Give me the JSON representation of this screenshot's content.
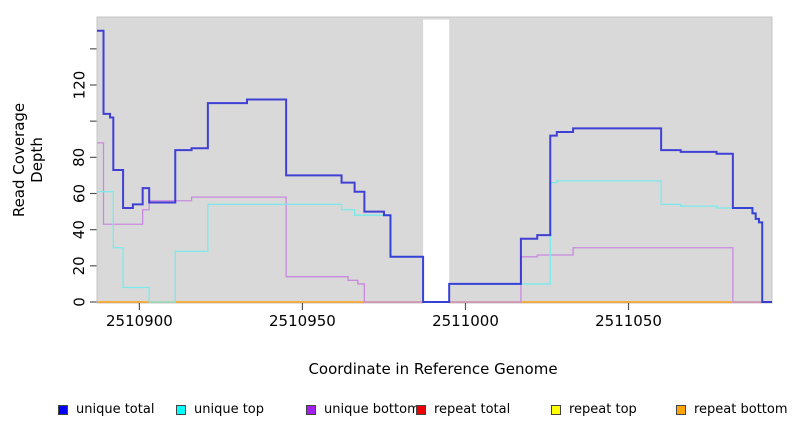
{
  "figure": {
    "ylabel": "Read Coverage Depth",
    "xlabel": "Coordinate in Reference Genome"
  },
  "chart_data": {
    "type": "line",
    "subtype": "step",
    "title": "",
    "xlabel": "Coordinate in Reference Genome",
    "ylabel": "Read Coverage Depth",
    "xlim": [
      2510887,
      2511094
    ],
    "ylim": [
      0,
      157
    ],
    "x_end": 2511094,
    "grid": false,
    "panel_bg": "#d9d9d9",
    "gap_region": [
      2510987,
      2510995
    ],
    "legend_position": "bottom",
    "x_ticks": [
      2510900,
      2510950,
      2511000,
      2511050
    ],
    "y_ticks": [
      {
        "value": 0,
        "label": "0"
      },
      {
        "value": 20,
        "label": "20"
      },
      {
        "value": 40,
        "label": "40"
      },
      {
        "value": 60,
        "label": "60"
      },
      {
        "value": 80,
        "label": "80"
      },
      {
        "value": 100,
        "label": ""
      },
      {
        "value": 120,
        "label": "120"
      },
      {
        "value": 140,
        "label": ""
      }
    ],
    "series": [
      {
        "name": "unique total",
        "legend_color": "#0000ee",
        "line_color": "#2525d2",
        "line_width": 2,
        "line_opacity": 0.85,
        "steps": [
          [
            2510887,
            150
          ],
          [
            2510889,
            104
          ],
          [
            2510891,
            102
          ],
          [
            2510892,
            73
          ],
          [
            2510895,
            52
          ],
          [
            2510898,
            54
          ],
          [
            2510901,
            63
          ],
          [
            2510903,
            55
          ],
          [
            2510911,
            84
          ],
          [
            2510916,
            85
          ],
          [
            2510921,
            110
          ],
          [
            2510933,
            112
          ],
          [
            2510945,
            70
          ],
          [
            2510962,
            66
          ],
          [
            2510966,
            61
          ],
          [
            2510969,
            50
          ],
          [
            2510975,
            48
          ],
          [
            2510977,
            25
          ],
          [
            2510987,
            0
          ],
          [
            2510995,
            10
          ],
          [
            2511017,
            35
          ],
          [
            2511022,
            37
          ],
          [
            2511026,
            92
          ],
          [
            2511028,
            94
          ],
          [
            2511033,
            96
          ],
          [
            2511060,
            84
          ],
          [
            2511066,
            83
          ],
          [
            2511077,
            82
          ],
          [
            2511082,
            52
          ],
          [
            2511088,
            49
          ],
          [
            2511089,
            46
          ],
          [
            2511090,
            44
          ],
          [
            2511091,
            0
          ]
        ]
      },
      {
        "name": "unique top",
        "legend_color": "#00ffff",
        "line_color": "#7be9ea",
        "line_width": 1.3,
        "line_opacity": 1,
        "steps": [
          [
            2510887,
            61
          ],
          [
            2510892,
            30
          ],
          [
            2510895,
            8
          ],
          [
            2510903,
            0
          ],
          [
            2510911,
            28
          ],
          [
            2510921,
            54
          ],
          [
            2510962,
            51
          ],
          [
            2510966,
            48
          ],
          [
            2510977,
            25
          ],
          [
            2510987,
            0
          ],
          [
            2510995,
            10
          ],
          [
            2511026,
            66
          ],
          [
            2511028,
            67
          ],
          [
            2511060,
            54
          ],
          [
            2511066,
            53
          ],
          [
            2511077,
            52
          ],
          [
            2511088,
            49
          ],
          [
            2511089,
            46
          ],
          [
            2511090,
            44
          ],
          [
            2511091,
            0
          ]
        ]
      },
      {
        "name": "unique bottom",
        "legend_color": "#a020f0",
        "line_color": "#c78ae0",
        "line_width": 1.3,
        "line_opacity": 1,
        "steps": [
          [
            2510887,
            88
          ],
          [
            2510889,
            43
          ],
          [
            2510901,
            51
          ],
          [
            2510903,
            56
          ],
          [
            2510916,
            58
          ],
          [
            2510945,
            14
          ],
          [
            2510964,
            12
          ],
          [
            2510967,
            10
          ],
          [
            2510969,
            0
          ],
          [
            2511017,
            25
          ],
          [
            2511022,
            26
          ],
          [
            2511033,
            30
          ],
          [
            2511082,
            0
          ]
        ]
      },
      {
        "name": "repeat total",
        "legend_color": "#ee0000",
        "line_color": "#e02020",
        "line_width": 1,
        "line_opacity": 1,
        "steps": [
          [
            2510887,
            0
          ]
        ]
      },
      {
        "name": "repeat top",
        "legend_color": "#ffff00",
        "line_color": "#f5e500",
        "line_width": 1,
        "line_opacity": 1,
        "steps": [
          [
            2510887,
            0
          ]
        ]
      },
      {
        "name": "repeat bottom",
        "legend_color": "#ffa500",
        "line_color": "#ffa011",
        "line_width": 1.6,
        "line_opacity": 1,
        "steps": [
          [
            2510887,
            0
          ]
        ]
      }
    ]
  }
}
